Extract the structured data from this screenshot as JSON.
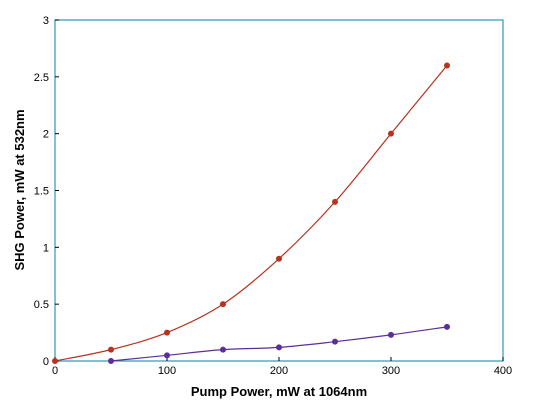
{
  "chart_data": {
    "type": "line",
    "title": "",
    "xlabel": "Pump Power, mW at 1064nm",
    "ylabel": "SHG Power, mW at 532nm",
    "xlim": [
      0,
      400
    ],
    "ylim": [
      0,
      3
    ],
    "x_ticks": [
      0,
      100,
      200,
      300,
      400
    ],
    "y_ticks": [
      0,
      0.5,
      1,
      1.5,
      2,
      2.5,
      3
    ],
    "x_tick_labels": [
      "0",
      "100",
      "200",
      "300",
      "400"
    ],
    "y_tick_labels": [
      "0",
      "0.5",
      "1",
      "1.5",
      "2",
      "2.5",
      "3"
    ],
    "grid": false,
    "frame_color": "#2a9ab8",
    "series": [
      {
        "color": "#b5331f",
        "x": [
          0,
          50,
          100,
          150,
          200,
          250,
          300,
          350
        ],
        "y": [
          0,
          0.1,
          0.25,
          0.5,
          0.9,
          1.4,
          2.0,
          2.6
        ]
      },
      {
        "color": "#5a2e9c",
        "x": [
          50,
          100,
          150,
          200,
          250,
          300,
          350
        ],
        "y": [
          0,
          0.05,
          0.1,
          0.12,
          0.17,
          0.23,
          0.3
        ]
      }
    ]
  }
}
